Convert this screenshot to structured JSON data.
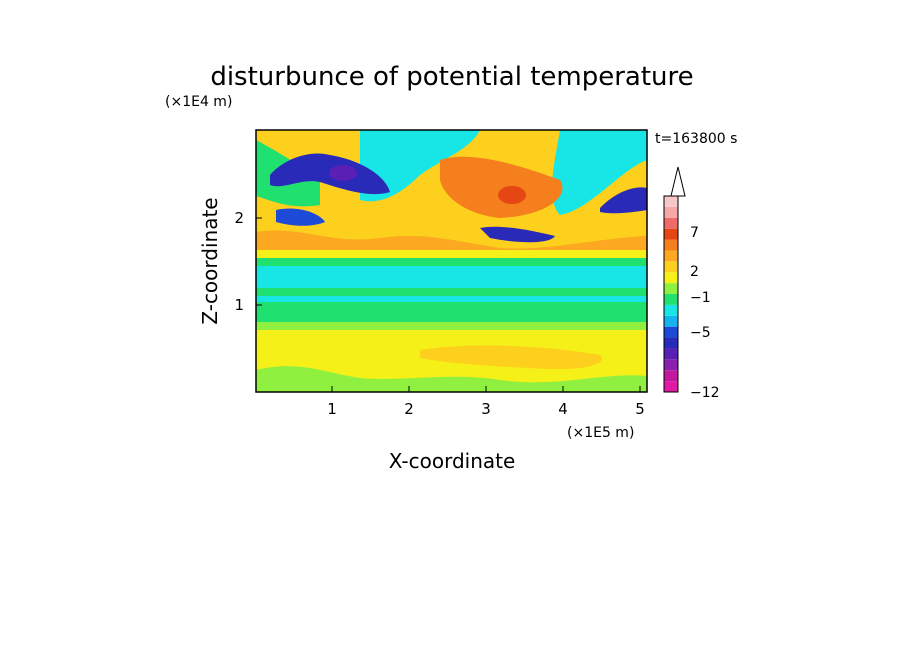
{
  "chart_data": {
    "type": "heatmap",
    "title": "disturbunce of potential temperature",
    "xlabel": "X-coordinate",
    "ylabel": "Z-coordinate",
    "x_unit": "(×1E5 m)",
    "y_unit": "(×1E4 m)",
    "time_label": "t=163800 s",
    "x_ticks": [
      1,
      2,
      3,
      4,
      5
    ],
    "y_ticks": [
      1,
      2
    ],
    "xlim": [
      0,
      5.1
    ],
    "ylim": [
      0,
      2.97
    ],
    "colorbar": {
      "tick_labels": [
        "7",
        "2",
        "−1",
        "−5",
        "−12"
      ],
      "extend": "max",
      "colors": [
        "#e01aa5",
        "#c0189e",
        "#8b1fb0",
        "#5a1fb4",
        "#2a2ab8",
        "#1e4ad8",
        "#14b4f0",
        "#18e6e6",
        "#20e070",
        "#90f040",
        "#f4f018",
        "#fcd01c",
        "#fca820",
        "#f47f1c",
        "#e64614",
        "#f06a6a",
        "#f4a8a8",
        "#f8c8c8"
      ]
    },
    "layers": [
      {
        "name": "surface-layer",
        "y": [
          0.0,
          0.5
        ],
        "level": 2
      },
      {
        "name": "lower-band",
        "y": [
          0.5,
          0.75
        ],
        "level": 1
      },
      {
        "name": "green-band",
        "y": [
          0.75,
          1.05
        ],
        "level": 0
      },
      {
        "name": "cyan-band",
        "y": [
          1.05,
          1.55
        ],
        "level": -1
      },
      {
        "name": "upper-band",
        "y": [
          1.55,
          2.97
        ],
        "level": 1
      }
    ],
    "features": [
      {
        "name": "negative-anomaly-west",
        "x": 0.6,
        "y": 2.5,
        "value": -5
      },
      {
        "name": "negative-anomaly-core",
        "x": 1.15,
        "y": 2.5,
        "value": -8
      },
      {
        "name": "positive-anomaly-center",
        "x": 3.35,
        "y": 2.3,
        "value": 5
      },
      {
        "name": "negative-anomaly-center",
        "x": 3.6,
        "y": 1.75,
        "value": -4
      },
      {
        "name": "negative-anomaly-east",
        "x": 4.8,
        "y": 2.25,
        "value": -4
      }
    ]
  }
}
